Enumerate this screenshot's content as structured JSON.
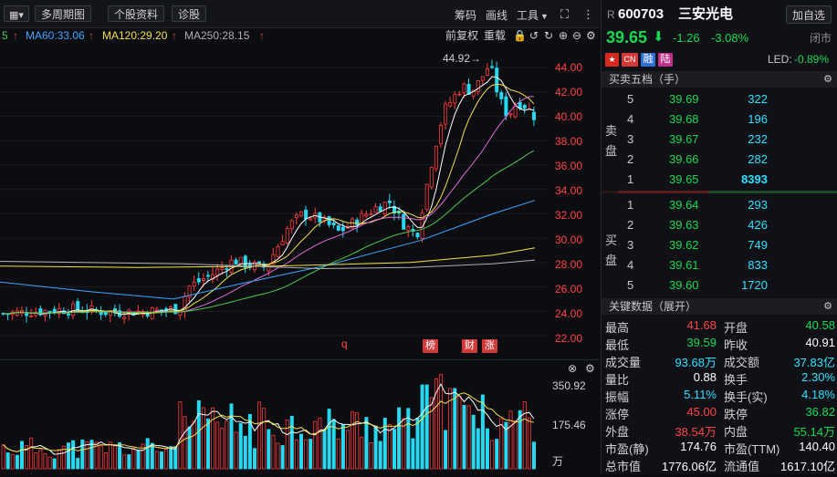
{
  "toolbar": {
    "multi_period": "多周期图",
    "stock_info": "个股资料",
    "diagnose": "诊股",
    "chips": "筹码",
    "draw": "画线",
    "tools": "工具"
  },
  "ma_legend": {
    "ma20_frag": "5",
    "ma60": "MA60:33.06",
    "ma120": "MA120:29.20",
    "ma250": "MA250:28.15",
    "arrow": "↑",
    "colors": {
      "ma60": "#3aa6ff",
      "ma120": "#f4e04d",
      "ma250": "#b0b0b0",
      "ma20": "#4ec94e"
    }
  },
  "chart_controls": {
    "adjust": "前复权",
    "overlay": "重载"
  },
  "price_axis": {
    "labels": [
      "44.00",
      "42.00",
      "40.00",
      "38.00",
      "36.00",
      "34.00",
      "32.00",
      "30.00",
      "28.00",
      "26.00",
      "24.00",
      "22.00"
    ],
    "high_marker": "44.92→"
  },
  "event_markers": {
    "q": "q",
    "bang": "榜",
    "cai": "财",
    "zhang": "涨"
  },
  "volume_axis": {
    "labels": [
      "350.92",
      "175.46",
      "万"
    ]
  },
  "header": {
    "prefix": "R",
    "code": "600703",
    "name": "三安光电",
    "watch_button": "加自选",
    "price": "39.65",
    "change": "-1.26",
    "change_pct": "-3.08%",
    "market_status": "闭市",
    "led_label": "LED:",
    "led_value": "-0.89%",
    "badge_cn": "CN",
    "badge_rong": "融",
    "badge_lu": "陆"
  },
  "order_book": {
    "title": "买卖五档（手）",
    "sell_label": "卖盘",
    "buy_label": "买盘",
    "sell": [
      {
        "level": "5",
        "price": "39.69",
        "volume": "322"
      },
      {
        "level": "4",
        "price": "39.68",
        "volume": "196"
      },
      {
        "level": "3",
        "price": "39.67",
        "volume": "232"
      },
      {
        "level": "2",
        "price": "39.66",
        "volume": "282"
      },
      {
        "level": "1",
        "price": "39.65",
        "volume": "8393"
      }
    ],
    "buy": [
      {
        "level": "1",
        "price": "39.64",
        "volume": "293"
      },
      {
        "level": "2",
        "price": "39.63",
        "volume": "426"
      },
      {
        "level": "3",
        "price": "39.62",
        "volume": "749"
      },
      {
        "level": "4",
        "price": "39.61",
        "volume": "833"
      },
      {
        "level": "5",
        "price": "39.60",
        "volume": "1720"
      }
    ]
  },
  "key_data": {
    "title": "关键数据（展开）",
    "rows": [
      {
        "l1": "最高",
        "v1": "41.68",
        "c1": "red",
        "l2": "开盘",
        "v2": "40.58",
        "c2": "green"
      },
      {
        "l1": "最低",
        "v1": "39.59",
        "c1": "green",
        "l2": "昨收",
        "v2": "40.91",
        "c2": "white"
      },
      {
        "l1": "成交量",
        "v1": "93.68万",
        "c1": "cyan",
        "l2": "成交额",
        "v2": "37.83亿",
        "c2": "cyan"
      },
      {
        "l1": "量比",
        "v1": "0.88",
        "c1": "white",
        "l2": "换手",
        "v2": "2.30%",
        "c2": "cyan"
      },
      {
        "l1": "振幅",
        "v1": "5.11%",
        "c1": "cyan",
        "l2": "换手(实)",
        "v2": "4.18%",
        "c2": "cyan"
      },
      {
        "l1": "涨停",
        "v1": "45.00",
        "c1": "red",
        "l2": "跌停",
        "v2": "36.82",
        "c2": "green"
      },
      {
        "l1": "外盘",
        "v1": "38.54万",
        "c1": "red",
        "l2": "内盘",
        "v2": "55.14万",
        "c2": "green"
      },
      {
        "l1": "市盈(静)",
        "v1": "174.76",
        "c1": "white",
        "l2": "市盈(TTM)",
        "v2": "140.40",
        "c2": "white"
      },
      {
        "l1": "总市值",
        "v1": "1776.06亿",
        "c1": "white",
        "l2": "流通值",
        "v2": "1617.10亿",
        "c2": "white"
      }
    ]
  }
}
